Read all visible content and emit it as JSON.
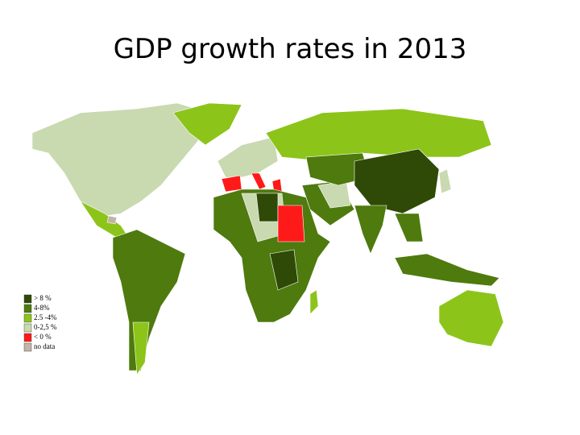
{
  "title": "GDP growth rates in 2013",
  "legend": [
    {
      "label": "> 8 %",
      "color": "#2f4a06"
    },
    {
      "label": "4-8%",
      "color": "#4e7a0e"
    },
    {
      "label": "2.5 -4%",
      "color": "#8cc41a"
    },
    {
      "label": "0-2,5 %",
      "color": "#c9d9b0"
    },
    {
      "label": "< 0 %",
      "color": "#ff1a1a"
    },
    {
      "label": "no data",
      "color": "#c4b3a8"
    }
  ]
}
